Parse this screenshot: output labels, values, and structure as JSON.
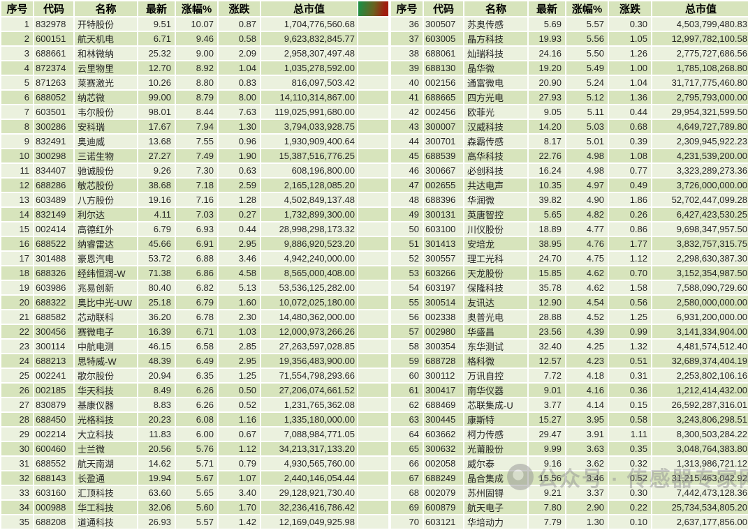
{
  "table": {
    "columns": [
      "序号",
      "代码",
      "名称",
      "最新",
      "涨幅%",
      "涨跌",
      "总市值"
    ],
    "left_rows": [
      [
        "1",
        "832978",
        "开特股份",
        "9.51",
        "10.07",
        "0.87",
        "1,704,776,560.68"
      ],
      [
        "2",
        "600151",
        "航天机电",
        "6.71",
        "9.46",
        "0.58",
        "9,623,832,845.77"
      ],
      [
        "3",
        "688661",
        "和林微纳",
        "25.32",
        "9.00",
        "2.09",
        "2,958,307,497.48"
      ],
      [
        "4",
        "872374",
        "云里物里",
        "12.70",
        "8.92",
        "1.04",
        "1,035,278,592.00"
      ],
      [
        "5",
        "871263",
        "莱赛激光",
        "10.26",
        "8.80",
        "0.83",
        "816,097,503.42"
      ],
      [
        "6",
        "688052",
        "纳芯微",
        "99.00",
        "8.79",
        "8.00",
        "14,110,314,867.00"
      ],
      [
        "7",
        "603501",
        "韦尔股份",
        "98.01",
        "8.44",
        "7.63",
        "119,025,991,680.00"
      ],
      [
        "8",
        "300286",
        "安科瑞",
        "17.67",
        "7.94",
        "1.30",
        "3,794,033,928.75"
      ],
      [
        "9",
        "832491",
        "奥迪威",
        "13.68",
        "7.55",
        "0.96",
        "1,930,909,400.64"
      ],
      [
        "10",
        "300298",
        "三诺生物",
        "27.27",
        "7.49",
        "1.90",
        "15,387,516,776.25"
      ],
      [
        "11",
        "834407",
        "驰诚股份",
        "9.26",
        "7.30",
        "0.63",
        "608,196,800.00"
      ],
      [
        "12",
        "688286",
        "敏芯股份",
        "38.68",
        "7.18",
        "2.59",
        "2,165,128,085.20"
      ],
      [
        "13",
        "603489",
        "八方股份",
        "19.16",
        "7.16",
        "1.28",
        "4,502,849,137.48"
      ],
      [
        "14",
        "832149",
        "利尔达",
        "4.11",
        "7.03",
        "0.27",
        "1,732,899,300.00"
      ],
      [
        "15",
        "002414",
        "高德红外",
        "6.79",
        "6.93",
        "0.44",
        "28,998,298,173.32"
      ],
      [
        "16",
        "688522",
        "纳睿雷达",
        "45.66",
        "6.91",
        "2.95",
        "9,886,920,523.20"
      ],
      [
        "17",
        "301488",
        "豪恩汽电",
        "53.72",
        "6.88",
        "3.46",
        "4,942,240,000.00"
      ],
      [
        "18",
        "688326",
        "经纬恒润-W",
        "71.38",
        "6.86",
        "4.58",
        "8,565,000,408.00"
      ],
      [
        "19",
        "603986",
        "兆易创新",
        "80.40",
        "6.82",
        "5.13",
        "53,536,125,282.00"
      ],
      [
        "20",
        "688322",
        "奥比中光-UW",
        "25.18",
        "6.79",
        "1.60",
        "10,072,025,180.00"
      ],
      [
        "21",
        "688582",
        "芯动联科",
        "36.20",
        "6.78",
        "2.30",
        "14,480,362,000.00"
      ],
      [
        "22",
        "300456",
        "赛微电子",
        "16.39",
        "6.71",
        "1.03",
        "12,000,973,266.26"
      ],
      [
        "23",
        "300114",
        "中航电测",
        "46.15",
        "6.58",
        "2.85",
        "27,263,597,028.85"
      ],
      [
        "24",
        "688213",
        "思特威-W",
        "48.39",
        "6.49",
        "2.95",
        "19,356,483,900.00"
      ],
      [
        "25",
        "002241",
        "歌尔股份",
        "20.94",
        "6.35",
        "1.25",
        "71,554,798,293.66"
      ],
      [
        "26",
        "002185",
        "华天科技",
        "8.49",
        "6.26",
        "0.50",
        "27,206,074,661.52"
      ],
      [
        "27",
        "830879",
        "基康仪器",
        "8.83",
        "6.26",
        "0.52",
        "1,231,765,362.08"
      ],
      [
        "28",
        "688450",
        "光格科技",
        "20.23",
        "6.08",
        "1.16",
        "1,335,180,000.00"
      ],
      [
        "29",
        "002214",
        "大立科技",
        "11.83",
        "6.00",
        "0.67",
        "7,088,984,771.05"
      ],
      [
        "30",
        "600460",
        "士兰微",
        "20.56",
        "5.76",
        "1.12",
        "34,213,317,133.20"
      ],
      [
        "31",
        "688552",
        "航天南湖",
        "14.62",
        "5.71",
        "0.79",
        "4,930,565,760.00"
      ],
      [
        "32",
        "688143",
        "长盈通",
        "19.94",
        "5.67",
        "1.07",
        "2,440,146,054.44"
      ],
      [
        "33",
        "603160",
        "汇顶科技",
        "63.60",
        "5.65",
        "3.40",
        "29,128,921,730.40"
      ],
      [
        "34",
        "000988",
        "华工科技",
        "32.06",
        "5.60",
        "1.70",
        "32,236,416,786.42"
      ],
      [
        "35",
        "688208",
        "道通科技",
        "26.93",
        "5.57",
        "1.42",
        "12,169,049,925.98"
      ]
    ],
    "right_rows": [
      [
        "36",
        "300507",
        "苏奥传感",
        "5.69",
        "5.57",
        "0.30",
        "4,503,799,480.83"
      ],
      [
        "37",
        "603005",
        "晶方科技",
        "19.93",
        "5.56",
        "1.05",
        "12,997,782,100.58"
      ],
      [
        "38",
        "688061",
        "灿瑞科技",
        "24.16",
        "5.50",
        "1.26",
        "2,775,727,686.56"
      ],
      [
        "39",
        "688130",
        "晶华微",
        "19.20",
        "5.49",
        "1.00",
        "1,785,108,268.80"
      ],
      [
        "40",
        "002156",
        "通富微电",
        "20.90",
        "5.24",
        "1.04",
        "31,717,775,460.80"
      ],
      [
        "41",
        "688665",
        "四方光电",
        "27.93",
        "5.12",
        "1.36",
        "2,795,793,000.00"
      ],
      [
        "42",
        "002456",
        "欧菲光",
        "9.05",
        "5.11",
        "0.44",
        "29,954,321,599.50"
      ],
      [
        "43",
        "300007",
        "汉威科技",
        "14.20",
        "5.03",
        "0.68",
        "4,649,727,789.80"
      ],
      [
        "44",
        "300701",
        "森霸传感",
        "8.17",
        "5.01",
        "0.39",
        "2,309,945,922.23"
      ],
      [
        "45",
        "688539",
        "高华科技",
        "22.76",
        "4.98",
        "1.08",
        "4,231,539,200.00"
      ],
      [
        "46",
        "300667",
        "必创科技",
        "16.24",
        "4.98",
        "0.77",
        "3,323,289,273.36"
      ],
      [
        "47",
        "002655",
        "共达电声",
        "10.35",
        "4.97",
        "0.49",
        "3,726,000,000.00"
      ],
      [
        "48",
        "688396",
        "华润微",
        "39.82",
        "4.90",
        "1.86",
        "52,702,447,099.28"
      ],
      [
        "49",
        "300131",
        "英唐智控",
        "5.65",
        "4.82",
        "0.26",
        "6,427,423,530.25"
      ],
      [
        "50",
        "603100",
        "川仪股份",
        "18.89",
        "4.77",
        "0.86",
        "9,698,347,957.50"
      ],
      [
        "51",
        "301413",
        "安培龙",
        "38.95",
        "4.76",
        "1.77",
        "3,832,757,315.75"
      ],
      [
        "52",
        "300557",
        "理工光科",
        "24.70",
        "4.75",
        "1.12",
        "2,298,630,387.30"
      ],
      [
        "53",
        "603266",
        "天龙股份",
        "15.85",
        "4.62",
        "0.70",
        "3,152,354,987.50"
      ],
      [
        "54",
        "603197",
        "保隆科技",
        "35.78",
        "4.62",
        "1.58",
        "7,588,090,729.60"
      ],
      [
        "55",
        "300514",
        "友讯达",
        "12.90",
        "4.54",
        "0.56",
        "2,580,000,000.00"
      ],
      [
        "56",
        "002338",
        "奥普光电",
        "28.88",
        "4.52",
        "1.25",
        "6,931,200,000.00"
      ],
      [
        "57",
        "002980",
        "华盛昌",
        "23.56",
        "4.39",
        "0.99",
        "3,141,334,904.00"
      ],
      [
        "58",
        "300354",
        "东华测试",
        "32.40",
        "4.25",
        "1.32",
        "4,481,574,512.40"
      ],
      [
        "59",
        "688728",
        "格科微",
        "12.57",
        "4.23",
        "0.51",
        "32,689,374,404.19"
      ],
      [
        "60",
        "300112",
        "万讯自控",
        "7.72",
        "4.18",
        "0.31",
        "2,253,802,106.16"
      ],
      [
        "61",
        "300417",
        "南华仪器",
        "9.01",
        "4.16",
        "0.36",
        "1,212,414,432.00"
      ],
      [
        "62",
        "688469",
        "芯联集成-U",
        "3.77",
        "4.14",
        "0.15",
        "26,592,287,316.01"
      ],
      [
        "63",
        "300445",
        "康斯特",
        "15.27",
        "3.95",
        "0.58",
        "3,243,806,298.51"
      ],
      [
        "64",
        "603662",
        "柯力传感",
        "29.47",
        "3.91",
        "1.11",
        "8,300,503,284.22"
      ],
      [
        "65",
        "300632",
        "光莆股份",
        "9.99",
        "3.63",
        "0.35",
        "3,048,764,383.80"
      ],
      [
        "66",
        "002058",
        "威尔泰",
        "9.16",
        "3.62",
        "0.32",
        "1,313,986,721.12"
      ],
      [
        "67",
        "688249",
        "晶合集成",
        "15.56",
        "3.46",
        "0.52",
        "31,215,463,042.92"
      ],
      [
        "68",
        "002079",
        "苏州固锝",
        "9.21",
        "3.37",
        "0.30",
        "7,442,473,128.36"
      ],
      [
        "69",
        "600879",
        "航天电子",
        "7.80",
        "2.90",
        "0.22",
        "25,734,534,805.20"
      ],
      [
        "70",
        "603121",
        "华培动力",
        "7.79",
        "1.30",
        "0.10",
        "2,637,177,856.00"
      ]
    ]
  },
  "watermark": {
    "text": "公众号 · 传感器专家网",
    "logo": "gray-circle-logo-icon"
  },
  "colors": {
    "row_light": "#ebf1de",
    "row_dark": "#d7e4bc",
    "gradient_green": "#1f8c42",
    "gradient_mid": "#6b611f",
    "gradient_red": "#a01d0e",
    "text": "#262626",
    "gridline": "#ffffff",
    "watermark": "rgba(145,145,145,0.5)"
  }
}
